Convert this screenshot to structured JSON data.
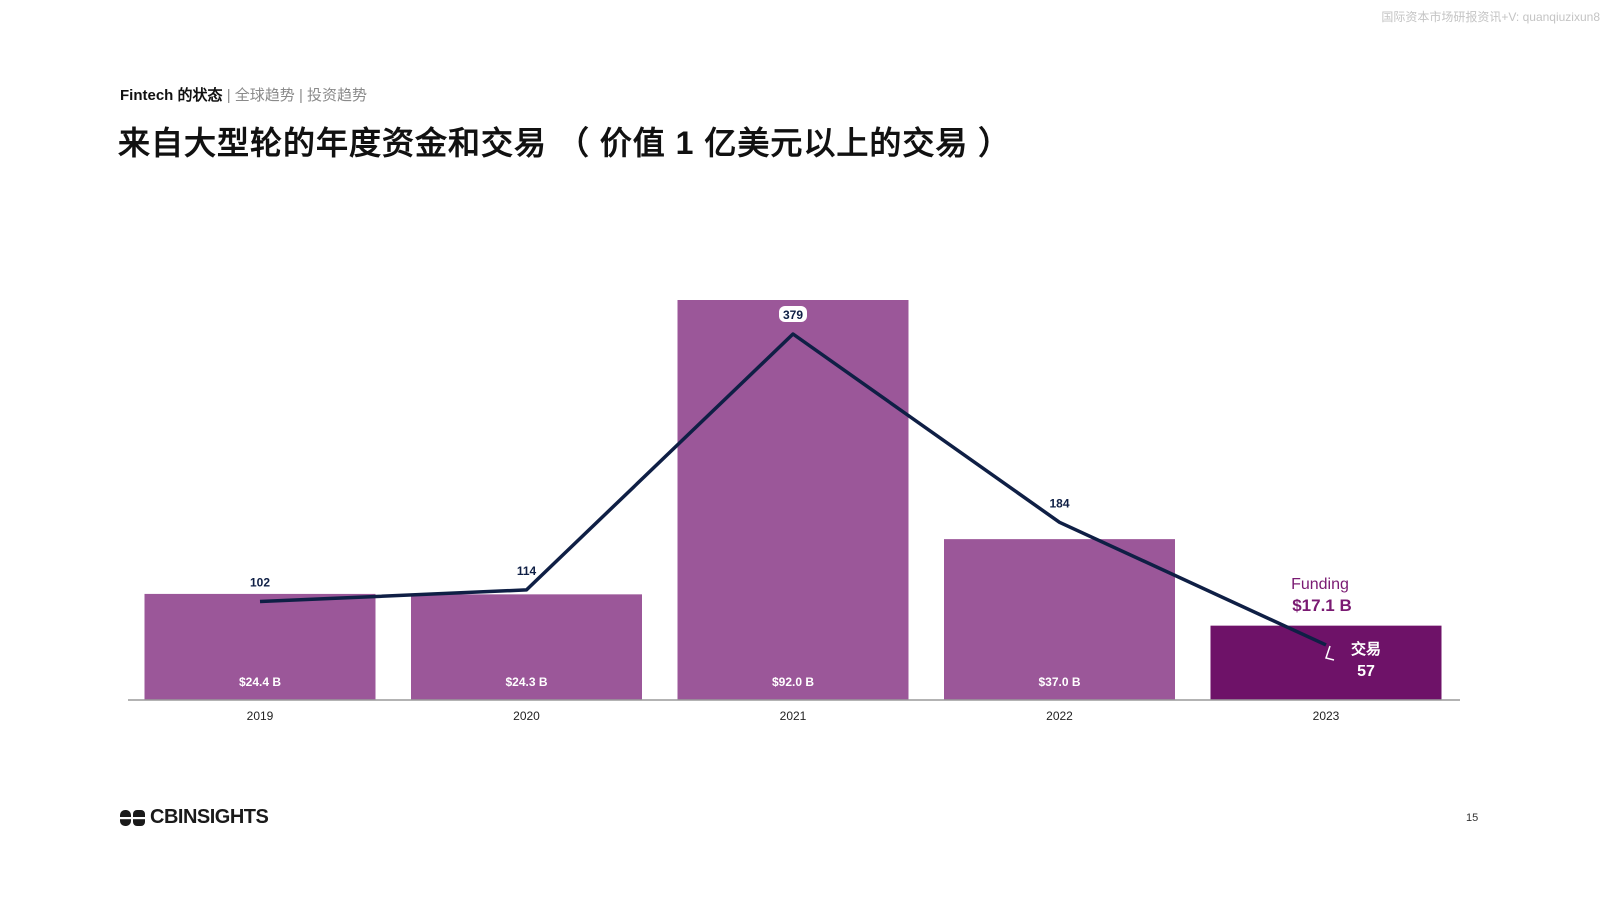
{
  "watermark": "国际资本市场研报资讯+V: quanqiuzixun8",
  "breadcrumb": {
    "main": "Fintech 的状态",
    "sep1": "|",
    "section": "全球趋势",
    "sep2": "|",
    "subsection": "投资趋势"
  },
  "title": "来自大型轮的年度资金和交易 （ 价值 1 亿美元以上的交易 ）",
  "logo_text": "CBINSIGHTS",
  "page_number": "15",
  "colors": {
    "bar": "#9b5799",
    "bar_highlight": "#6e1268",
    "line": "#0f1f45",
    "annotation": "#7a1a72"
  },
  "chart_data": {
    "type": "bar",
    "categories": [
      "2019",
      "2020",
      "2021",
      "2022",
      "2023"
    ],
    "series": [
      {
        "kind": "bar",
        "unit": "B",
        "values": [
          24.4,
          24.3,
          92.0,
          37.0,
          17.1
        ],
        "labels": [
          "$24.4 B",
          "$24.3 B",
          "$92.0 B",
          "$37.0 B",
          ""
        ]
      },
      {
        "kind": "line",
        "values": [
          102,
          114,
          379,
          184,
          57
        ],
        "labels": [
          "102",
          "114",
          "379",
          "184",
          ""
        ]
      }
    ],
    "annotations": {
      "funding_label": "Funding",
      "funding_value": "$17.1 B",
      "deals_label": "交易",
      "deals_value": "57"
    },
    "grid": false,
    "legend": "none"
  }
}
